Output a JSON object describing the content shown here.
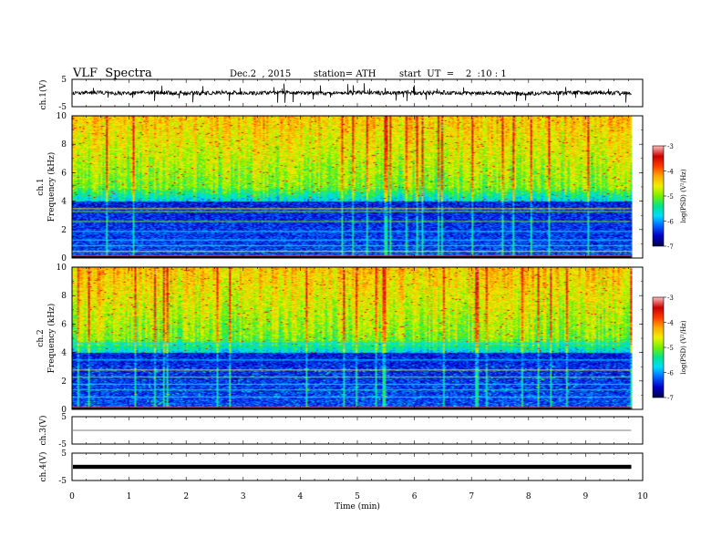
{
  "header": {
    "title": "VLF  Spectra",
    "date": "Dec.2  , 2015",
    "station": "station= ATH",
    "start": "start  UT  =    2  :10 : 1"
  },
  "chart_data": [
    {
      "type": "line",
      "name": "waveform-ch1",
      "ylabel": "ch.1(V)",
      "ylim": [
        -5,
        5
      ],
      "y_ticks": [
        "5",
        "-5"
      ],
      "xlim": [
        0,
        10
      ],
      "description_values": {
        "baseline": 0,
        "typical_amplitude": 0.8,
        "max_spike": 2.5
      }
    },
    {
      "type": "heatmap",
      "name": "spectrogram-ch1",
      "ylabel_channel": "ch.1",
      "ylabel": "Frequency  (kHz)",
      "ylim": [
        0,
        10
      ],
      "y_ticks": [
        "0",
        "2",
        "4",
        "6",
        "8",
        "10"
      ],
      "xlim": [
        0,
        10
      ],
      "data_end_min": 9.8,
      "colorbar": {
        "label": "log(PSD) (V²/Hz)",
        "range": [
          -7,
          -3
        ],
        "ticks": [
          "-3",
          "-4",
          "-5",
          "-6",
          "-7"
        ],
        "colors": [
          "#000050",
          "#0000c8",
          "#0064ff",
          "#00dcff",
          "#00e68c",
          "#78f000",
          "#f0f000",
          "#ffaa00",
          "#ff3c00",
          "#c80000",
          "#ffb4b4"
        ]
      }
    },
    {
      "type": "heatmap",
      "name": "spectrogram-ch2",
      "ylabel_channel": "ch.2",
      "ylabel": "Frequency  (kHz)",
      "ylim": [
        0,
        10
      ],
      "y_ticks": [
        "0",
        "2",
        "4",
        "6",
        "8",
        "10"
      ],
      "xlim": [
        0,
        10
      ],
      "data_end_min": 9.8,
      "colorbar": {
        "label": "log(PSD) (V²/Hz)",
        "range": [
          -7,
          -3
        ],
        "ticks": [
          "-3",
          "-4",
          "-5",
          "-6",
          "-7"
        ]
      }
    },
    {
      "type": "line",
      "name": "waveform-ch3",
      "ylabel": "ch.3(V)",
      "ylim": [
        -5,
        5
      ],
      "y_ticks": [
        "5",
        "-5"
      ],
      "xlim": [
        0,
        10
      ],
      "description_values": {
        "baseline": 0,
        "typical_amplitude": 0
      }
    },
    {
      "type": "line",
      "name": "waveform-ch4",
      "ylabel": "ch.4(V)",
      "ylim": [
        -5,
        5
      ],
      "y_ticks": [
        "5",
        "-5"
      ],
      "xlim": [
        0,
        10
      ],
      "xlabel": "Time  (min)",
      "x_ticks": [
        "0",
        "1",
        "2",
        "3",
        "4",
        "5",
        "6",
        "7",
        "8",
        "9",
        "10"
      ],
      "description_values": {
        "baseline": 0,
        "typical_amplitude": 0.15
      }
    }
  ]
}
